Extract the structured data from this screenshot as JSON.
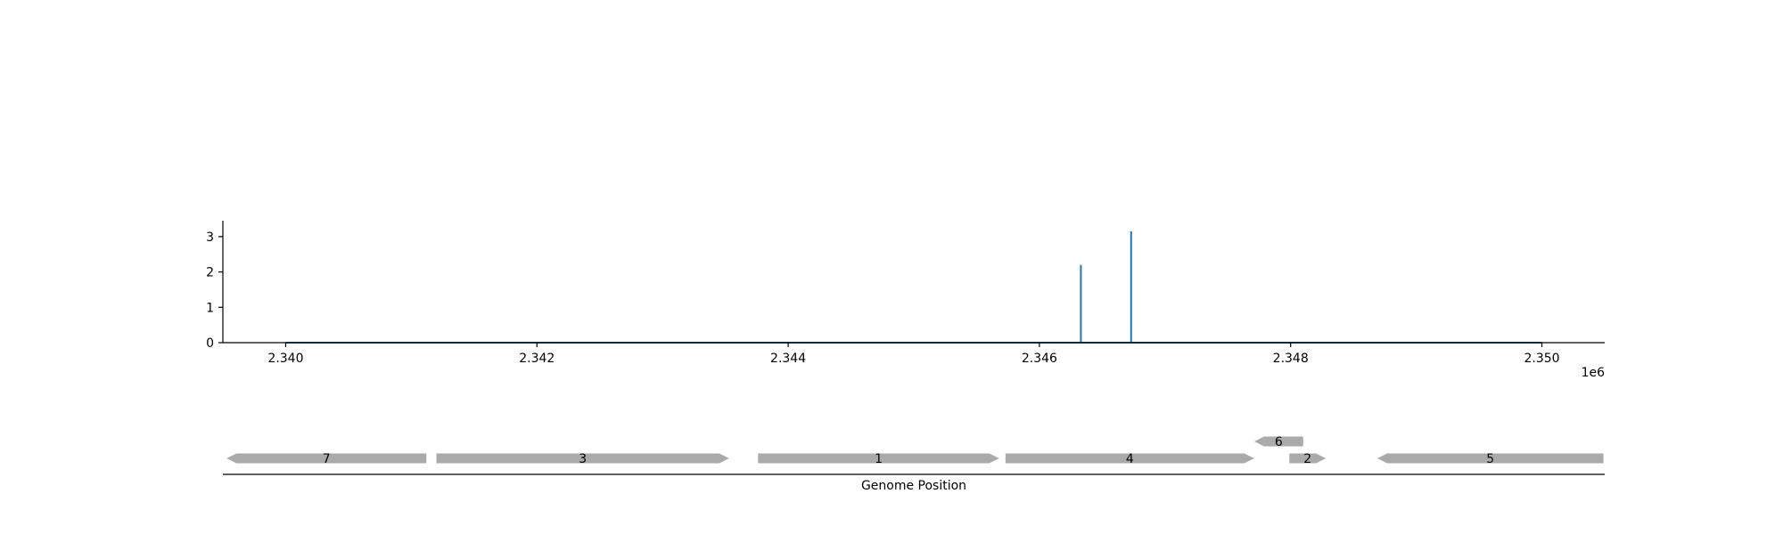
{
  "chart_data": [
    {
      "type": "line",
      "title": "",
      "xlabel": "",
      "ylabel": "",
      "x_offset_label": "1e6",
      "xlim": [
        2339500,
        2350500
      ],
      "ylim": [
        0,
        3.45
      ],
      "x_ticks": [
        2340000,
        2342000,
        2344000,
        2346000,
        2348000,
        2350000
      ],
      "x_tick_labels": [
        "2.340",
        "2.342",
        "2.344",
        "2.346",
        "2.348",
        "2.350"
      ],
      "y_ticks": [
        0,
        1,
        2,
        3
      ],
      "y_tick_labels": [
        "0",
        "1",
        "2",
        "3"
      ],
      "grid": false,
      "color": "#1f77b4",
      "x_range": [
        2340000,
        2350000
      ],
      "peaks": [
        {
          "x": 2346330,
          "y": 2.2
        },
        {
          "x": 2346730,
          "y": 3.15
        }
      ]
    },
    {
      "type": "gene-track",
      "xlabel": "Genome Position",
      "xlim": [
        2339500,
        2350500
      ],
      "color": "#aaaaaa",
      "genes": [
        {
          "label": "7",
          "start": 2339530,
          "end": 2341120,
          "strand": "-",
          "row": 0
        },
        {
          "label": "3",
          "start": 2341200,
          "end": 2343530,
          "strand": "+",
          "row": 0
        },
        {
          "label": "1",
          "start": 2343760,
          "end": 2345680,
          "strand": "+",
          "row": 0
        },
        {
          "label": "4",
          "start": 2345730,
          "end": 2347710,
          "strand": "+",
          "row": 0
        },
        {
          "label": "6",
          "start": 2347710,
          "end": 2348100,
          "strand": "-",
          "row": 1
        },
        {
          "label": "2",
          "start": 2347990,
          "end": 2348280,
          "strand": "+",
          "row": 0
        },
        {
          "label": "5",
          "start": 2348690,
          "end": 2350490,
          "strand": "-",
          "row": 0
        }
      ]
    }
  ]
}
